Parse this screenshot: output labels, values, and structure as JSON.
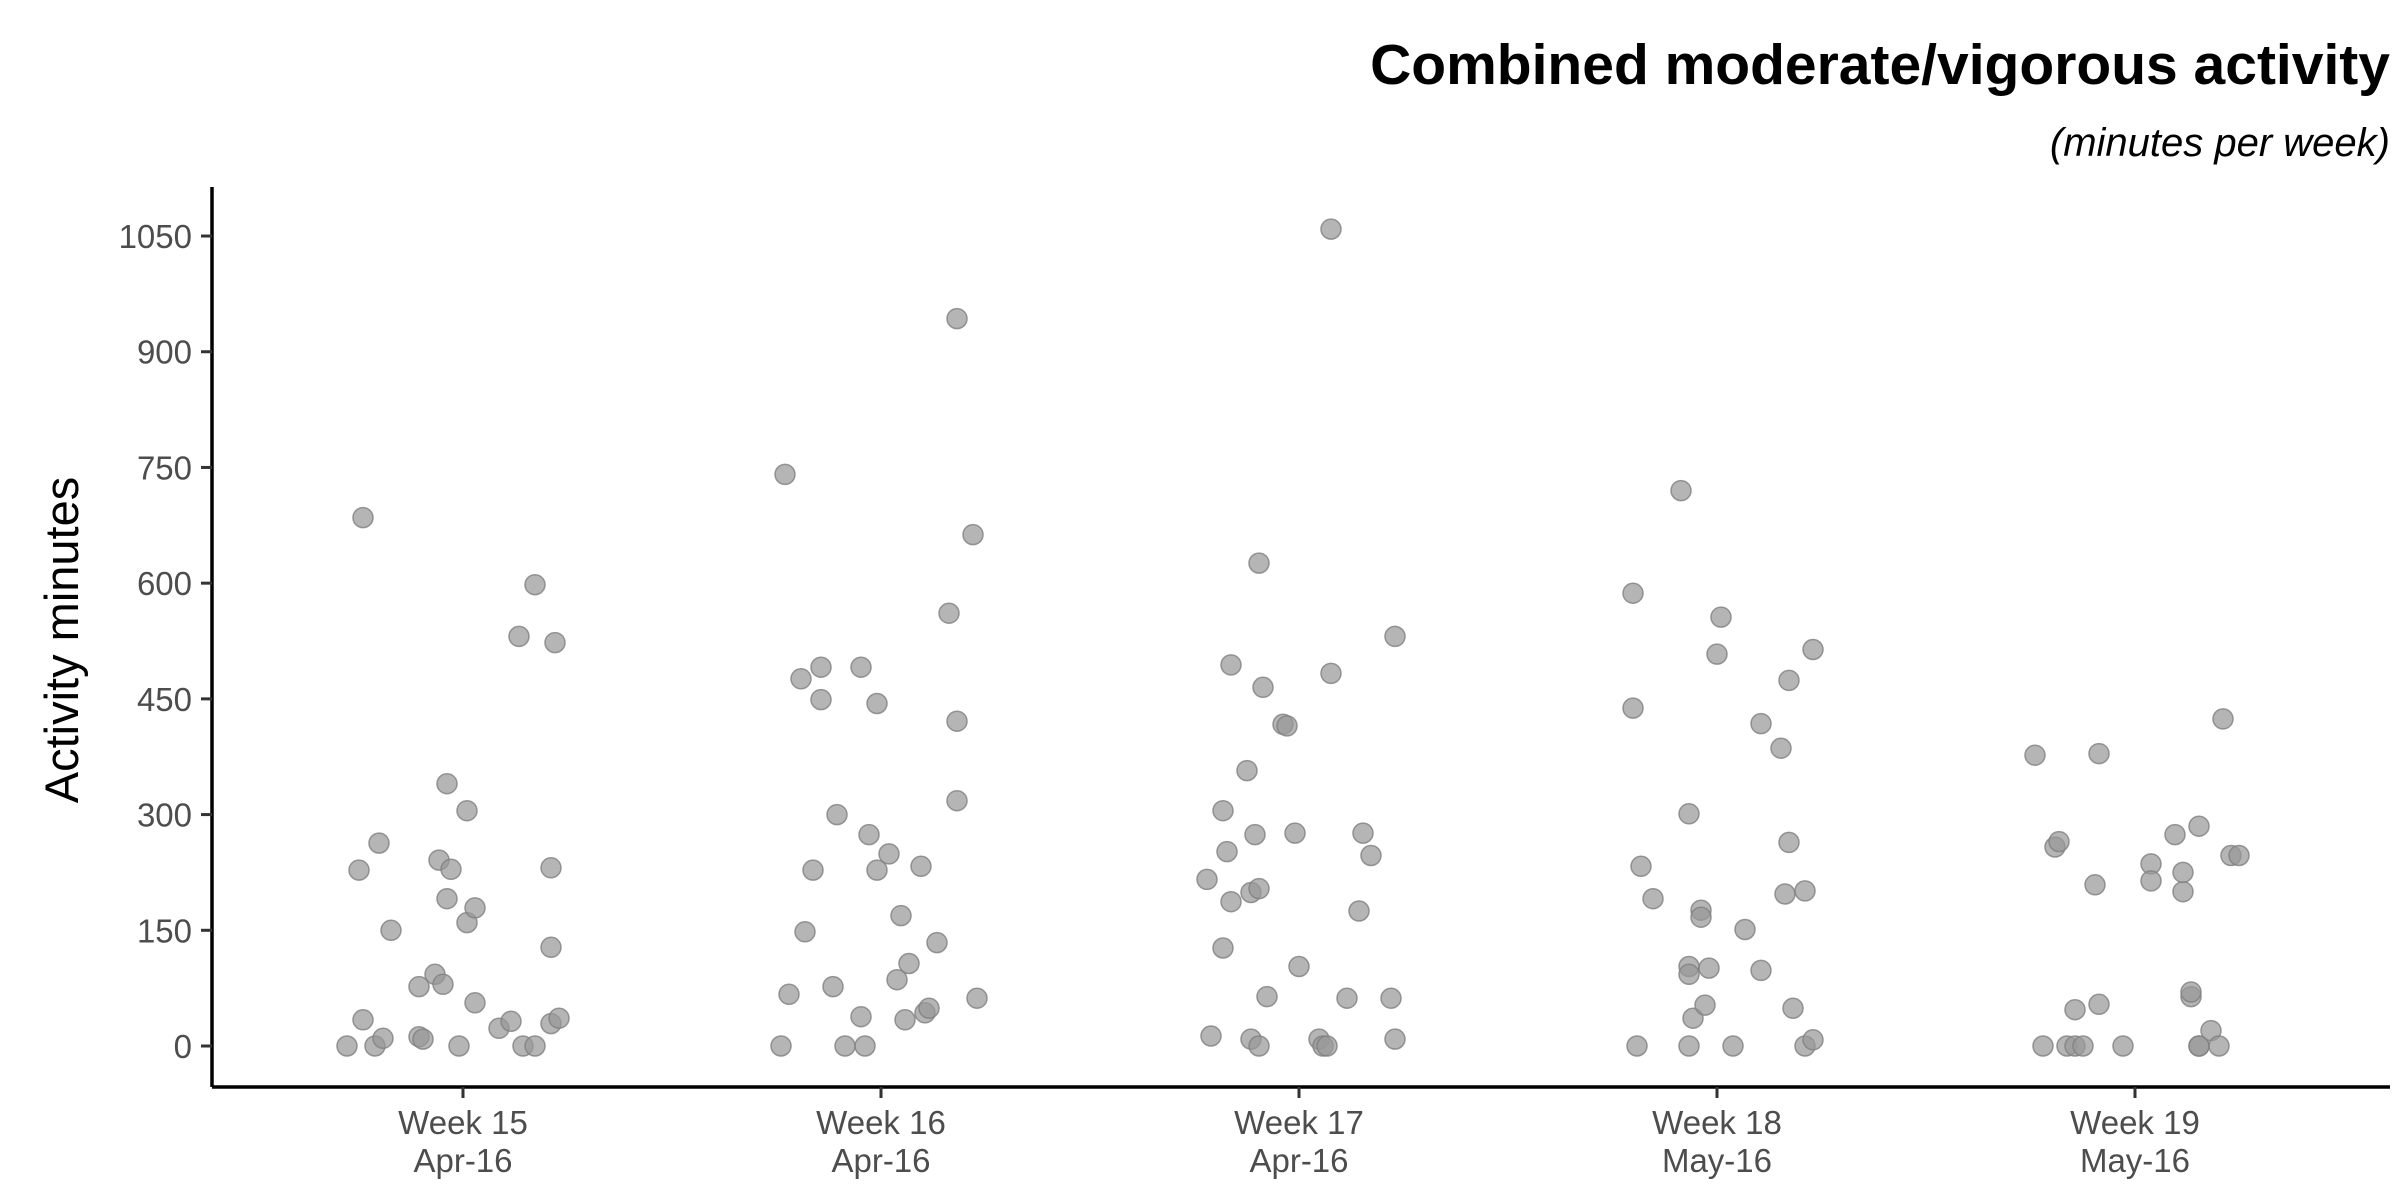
{
  "chart_data": {
    "type": "scatter",
    "title": "Combined moderate/vigorous activity",
    "subtitle": "(minutes per week)",
    "xlabel": "",
    "ylabel": "Activity minutes",
    "ylim": [
      -50,
      1110
    ],
    "yticks": [
      0,
      150,
      300,
      450,
      600,
      750,
      900,
      1050
    ],
    "grid": false,
    "legend": "none",
    "point_color": "#999999",
    "point_stroke": "#808080",
    "categories": [
      {
        "line1": "Week 15",
        "line2": "Apr-16"
      },
      {
        "line1": "Week 16",
        "line2": "Apr-16"
      },
      {
        "line1": "Week 17",
        "line2": "Apr-16"
      },
      {
        "line1": "Week 18",
        "line2": "May-16"
      },
      {
        "line1": "Week 19",
        "line2": "May-16"
      }
    ],
    "points": [
      {
        "c": 0,
        "j": -0.25,
        "y": 685
      },
      {
        "c": 0,
        "j": -0.21,
        "y": 263
      },
      {
        "c": 0,
        "j": -0.26,
        "y": 228
      },
      {
        "c": 0,
        "j": -0.18,
        "y": 150
      },
      {
        "c": 0,
        "j": -0.25,
        "y": 34
      },
      {
        "c": 0,
        "j": -0.29,
        "y": 0
      },
      {
        "c": 0,
        "j": -0.22,
        "y": 0
      },
      {
        "c": 0,
        "j": -0.2,
        "y": 10
      },
      {
        "c": 0,
        "j": -0.11,
        "y": 12
      },
      {
        "c": 0,
        "j": -0.1,
        "y": 9
      },
      {
        "c": 0,
        "j": -0.01,
        "y": 0
      },
      {
        "c": 0,
        "j": -0.11,
        "y": 77
      },
      {
        "c": 0,
        "j": -0.07,
        "y": 93
      },
      {
        "c": 0,
        "j": -0.05,
        "y": 80
      },
      {
        "c": 0,
        "j": -0.06,
        "y": 241
      },
      {
        "c": 0,
        "j": -0.04,
        "y": 191
      },
      {
        "c": 0,
        "j": -0.03,
        "y": 229
      },
      {
        "c": 0,
        "j": -0.04,
        "y": 340
      },
      {
        "c": 0,
        "j": 0.01,
        "y": 305
      },
      {
        "c": 0,
        "j": 0.01,
        "y": 160
      },
      {
        "c": 0,
        "j": 0.03,
        "y": 179
      },
      {
        "c": 0,
        "j": 0.03,
        "y": 56
      },
      {
        "c": 0,
        "j": 0.09,
        "y": 23
      },
      {
        "c": 0,
        "j": 0.12,
        "y": 32
      },
      {
        "c": 0,
        "j": 0.15,
        "y": 0
      },
      {
        "c": 0,
        "j": 0.18,
        "y": 0
      },
      {
        "c": 0,
        "j": 0.14,
        "y": 531
      },
      {
        "c": 0,
        "j": 0.18,
        "y": 598
      },
      {
        "c": 0,
        "j": 0.23,
        "y": 523
      },
      {
        "c": 0,
        "j": 0.22,
        "y": 231
      },
      {
        "c": 0,
        "j": 0.22,
        "y": 128
      },
      {
        "c": 0,
        "j": 0.22,
        "y": 29
      },
      {
        "c": 0,
        "j": 0.24,
        "y": 36
      },
      {
        "c": 1,
        "j": -0.24,
        "y": 741
      },
      {
        "c": 1,
        "j": -0.2,
        "y": 476
      },
      {
        "c": 1,
        "j": -0.15,
        "y": 491
      },
      {
        "c": 1,
        "j": -0.15,
        "y": 449
      },
      {
        "c": 1,
        "j": -0.11,
        "y": 300
      },
      {
        "c": 1,
        "j": -0.17,
        "y": 228
      },
      {
        "c": 1,
        "j": -0.19,
        "y": 148
      },
      {
        "c": 1,
        "j": -0.23,
        "y": 67
      },
      {
        "c": 1,
        "j": -0.25,
        "y": 0
      },
      {
        "c": 1,
        "j": -0.12,
        "y": 77
      },
      {
        "c": 1,
        "j": -0.09,
        "y": 0
      },
      {
        "c": 1,
        "j": -0.04,
        "y": 0
      },
      {
        "c": 1,
        "j": -0.05,
        "y": 38
      },
      {
        "c": 1,
        "j": -0.05,
        "y": 491
      },
      {
        "c": 1,
        "j": -0.01,
        "y": 444
      },
      {
        "c": 1,
        "j": -0.03,
        "y": 274
      },
      {
        "c": 1,
        "j": 0.02,
        "y": 249
      },
      {
        "c": 1,
        "j": -0.01,
        "y": 228
      },
      {
        "c": 1,
        "j": 0.05,
        "y": 169
      },
      {
        "c": 1,
        "j": 0.07,
        "y": 107
      },
      {
        "c": 1,
        "j": 0.04,
        "y": 86
      },
      {
        "c": 1,
        "j": 0.06,
        "y": 34
      },
      {
        "c": 1,
        "j": 0.11,
        "y": 43
      },
      {
        "c": 1,
        "j": 0.12,
        "y": 49
      },
      {
        "c": 1,
        "j": 0.1,
        "y": 233
      },
      {
        "c": 1,
        "j": 0.14,
        "y": 134
      },
      {
        "c": 1,
        "j": 0.17,
        "y": 561
      },
      {
        "c": 1,
        "j": 0.19,
        "y": 943
      },
      {
        "c": 1,
        "j": 0.19,
        "y": 421
      },
      {
        "c": 1,
        "j": 0.19,
        "y": 318
      },
      {
        "c": 1,
        "j": 0.23,
        "y": 663
      },
      {
        "c": 1,
        "j": 0.24,
        "y": 62
      },
      {
        "c": 2,
        "j": -0.23,
        "y": 216
      },
      {
        "c": 2,
        "j": -0.22,
        "y": 13
      },
      {
        "c": 2,
        "j": -0.19,
        "y": 305
      },
      {
        "c": 2,
        "j": -0.18,
        "y": 252
      },
      {
        "c": 2,
        "j": -0.19,
        "y": 127
      },
      {
        "c": 2,
        "j": -0.17,
        "y": 187
      },
      {
        "c": 2,
        "j": -0.17,
        "y": 494
      },
      {
        "c": 2,
        "j": -0.13,
        "y": 357
      },
      {
        "c": 2,
        "j": -0.12,
        "y": 199
      },
      {
        "c": 2,
        "j": -0.12,
        "y": 9
      },
      {
        "c": 2,
        "j": -0.11,
        "y": 274
      },
      {
        "c": 2,
        "j": -0.1,
        "y": 204
      },
      {
        "c": 2,
        "j": -0.1,
        "y": 0
      },
      {
        "c": 2,
        "j": -0.1,
        "y": 626
      },
      {
        "c": 2,
        "j": -0.09,
        "y": 465
      },
      {
        "c": 2,
        "j": -0.08,
        "y": 64
      },
      {
        "c": 2,
        "j": -0.04,
        "y": 417
      },
      {
        "c": 2,
        "j": -0.03,
        "y": 415
      },
      {
        "c": 2,
        "j": -0.01,
        "y": 276
      },
      {
        "c": 2,
        "j": 0.0,
        "y": 103
      },
      {
        "c": 2,
        "j": 0.05,
        "y": 9
      },
      {
        "c": 2,
        "j": 0.06,
        "y": 0
      },
      {
        "c": 2,
        "j": 0.07,
        "y": 0
      },
      {
        "c": 2,
        "j": 0.08,
        "y": 1059
      },
      {
        "c": 2,
        "j": 0.08,
        "y": 483
      },
      {
        "c": 2,
        "j": 0.12,
        "y": 62
      },
      {
        "c": 2,
        "j": 0.15,
        "y": 175
      },
      {
        "c": 2,
        "j": 0.16,
        "y": 276
      },
      {
        "c": 2,
        "j": 0.18,
        "y": 247
      },
      {
        "c": 2,
        "j": 0.23,
        "y": 62
      },
      {
        "c": 2,
        "j": 0.24,
        "y": 9
      },
      {
        "c": 2,
        "j": 0.24,
        "y": 531
      },
      {
        "c": 3,
        "j": -0.21,
        "y": 438
      },
      {
        "c": 3,
        "j": -0.21,
        "y": 587
      },
      {
        "c": 3,
        "j": -0.2,
        "y": 0
      },
      {
        "c": 3,
        "j": -0.19,
        "y": 233
      },
      {
        "c": 3,
        "j": -0.16,
        "y": 191
      },
      {
        "c": 3,
        "j": -0.09,
        "y": 720
      },
      {
        "c": 3,
        "j": -0.07,
        "y": 301
      },
      {
        "c": 3,
        "j": -0.07,
        "y": 103
      },
      {
        "c": 3,
        "j": -0.07,
        "y": 93
      },
      {
        "c": 3,
        "j": -0.06,
        "y": 36
      },
      {
        "c": 3,
        "j": -0.07,
        "y": 0
      },
      {
        "c": 3,
        "j": -0.04,
        "y": 176
      },
      {
        "c": 3,
        "j": -0.04,
        "y": 167
      },
      {
        "c": 3,
        "j": -0.03,
        "y": 53
      },
      {
        "c": 3,
        "j": -0.02,
        "y": 101
      },
      {
        "c": 3,
        "j": 0.01,
        "y": 556
      },
      {
        "c": 3,
        "j": 0.0,
        "y": 508
      },
      {
        "c": 3,
        "j": 0.04,
        "y": 0
      },
      {
        "c": 3,
        "j": 0.07,
        "y": 151
      },
      {
        "c": 3,
        "j": 0.11,
        "y": 98
      },
      {
        "c": 3,
        "j": 0.11,
        "y": 418
      },
      {
        "c": 3,
        "j": 0.16,
        "y": 386
      },
      {
        "c": 3,
        "j": 0.17,
        "y": 197
      },
      {
        "c": 3,
        "j": 0.18,
        "y": 264
      },
      {
        "c": 3,
        "j": 0.18,
        "y": 474
      },
      {
        "c": 3,
        "j": 0.19,
        "y": 49
      },
      {
        "c": 3,
        "j": 0.22,
        "y": 201
      },
      {
        "c": 3,
        "j": 0.22,
        "y": 0
      },
      {
        "c": 3,
        "j": 0.24,
        "y": 8
      },
      {
        "c": 3,
        "j": 0.24,
        "y": 514
      },
      {
        "c": 4,
        "j": -0.25,
        "y": 377
      },
      {
        "c": 4,
        "j": -0.23,
        "y": 0
      },
      {
        "c": 4,
        "j": -0.2,
        "y": 258
      },
      {
        "c": 4,
        "j": -0.19,
        "y": 265
      },
      {
        "c": 4,
        "j": -0.17,
        "y": 0
      },
      {
        "c": 4,
        "j": -0.15,
        "y": 47
      },
      {
        "c": 4,
        "j": -0.15,
        "y": 0
      },
      {
        "c": 4,
        "j": -0.13,
        "y": 0
      },
      {
        "c": 4,
        "j": -0.1,
        "y": 209
      },
      {
        "c": 4,
        "j": -0.09,
        "y": 379
      },
      {
        "c": 4,
        "j": -0.09,
        "y": 54
      },
      {
        "c": 4,
        "j": -0.03,
        "y": 0
      },
      {
        "c": 4,
        "j": 0.04,
        "y": 236
      },
      {
        "c": 4,
        "j": 0.04,
        "y": 214
      },
      {
        "c": 4,
        "j": 0.1,
        "y": 274
      },
      {
        "c": 4,
        "j": 0.12,
        "y": 200
      },
      {
        "c": 4,
        "j": 0.12,
        "y": 225
      },
      {
        "c": 4,
        "j": 0.14,
        "y": 64
      },
      {
        "c": 4,
        "j": 0.14,
        "y": 70
      },
      {
        "c": 4,
        "j": 0.16,
        "y": 0
      },
      {
        "c": 4,
        "j": 0.16,
        "y": 0
      },
      {
        "c": 4,
        "j": 0.16,
        "y": 285
      },
      {
        "c": 4,
        "j": 0.19,
        "y": 20
      },
      {
        "c": 4,
        "j": 0.21,
        "y": 0
      },
      {
        "c": 4,
        "j": 0.22,
        "y": 424
      },
      {
        "c": 4,
        "j": 0.24,
        "y": 247
      },
      {
        "c": 4,
        "j": 0.26,
        "y": 247
      }
    ]
  }
}
